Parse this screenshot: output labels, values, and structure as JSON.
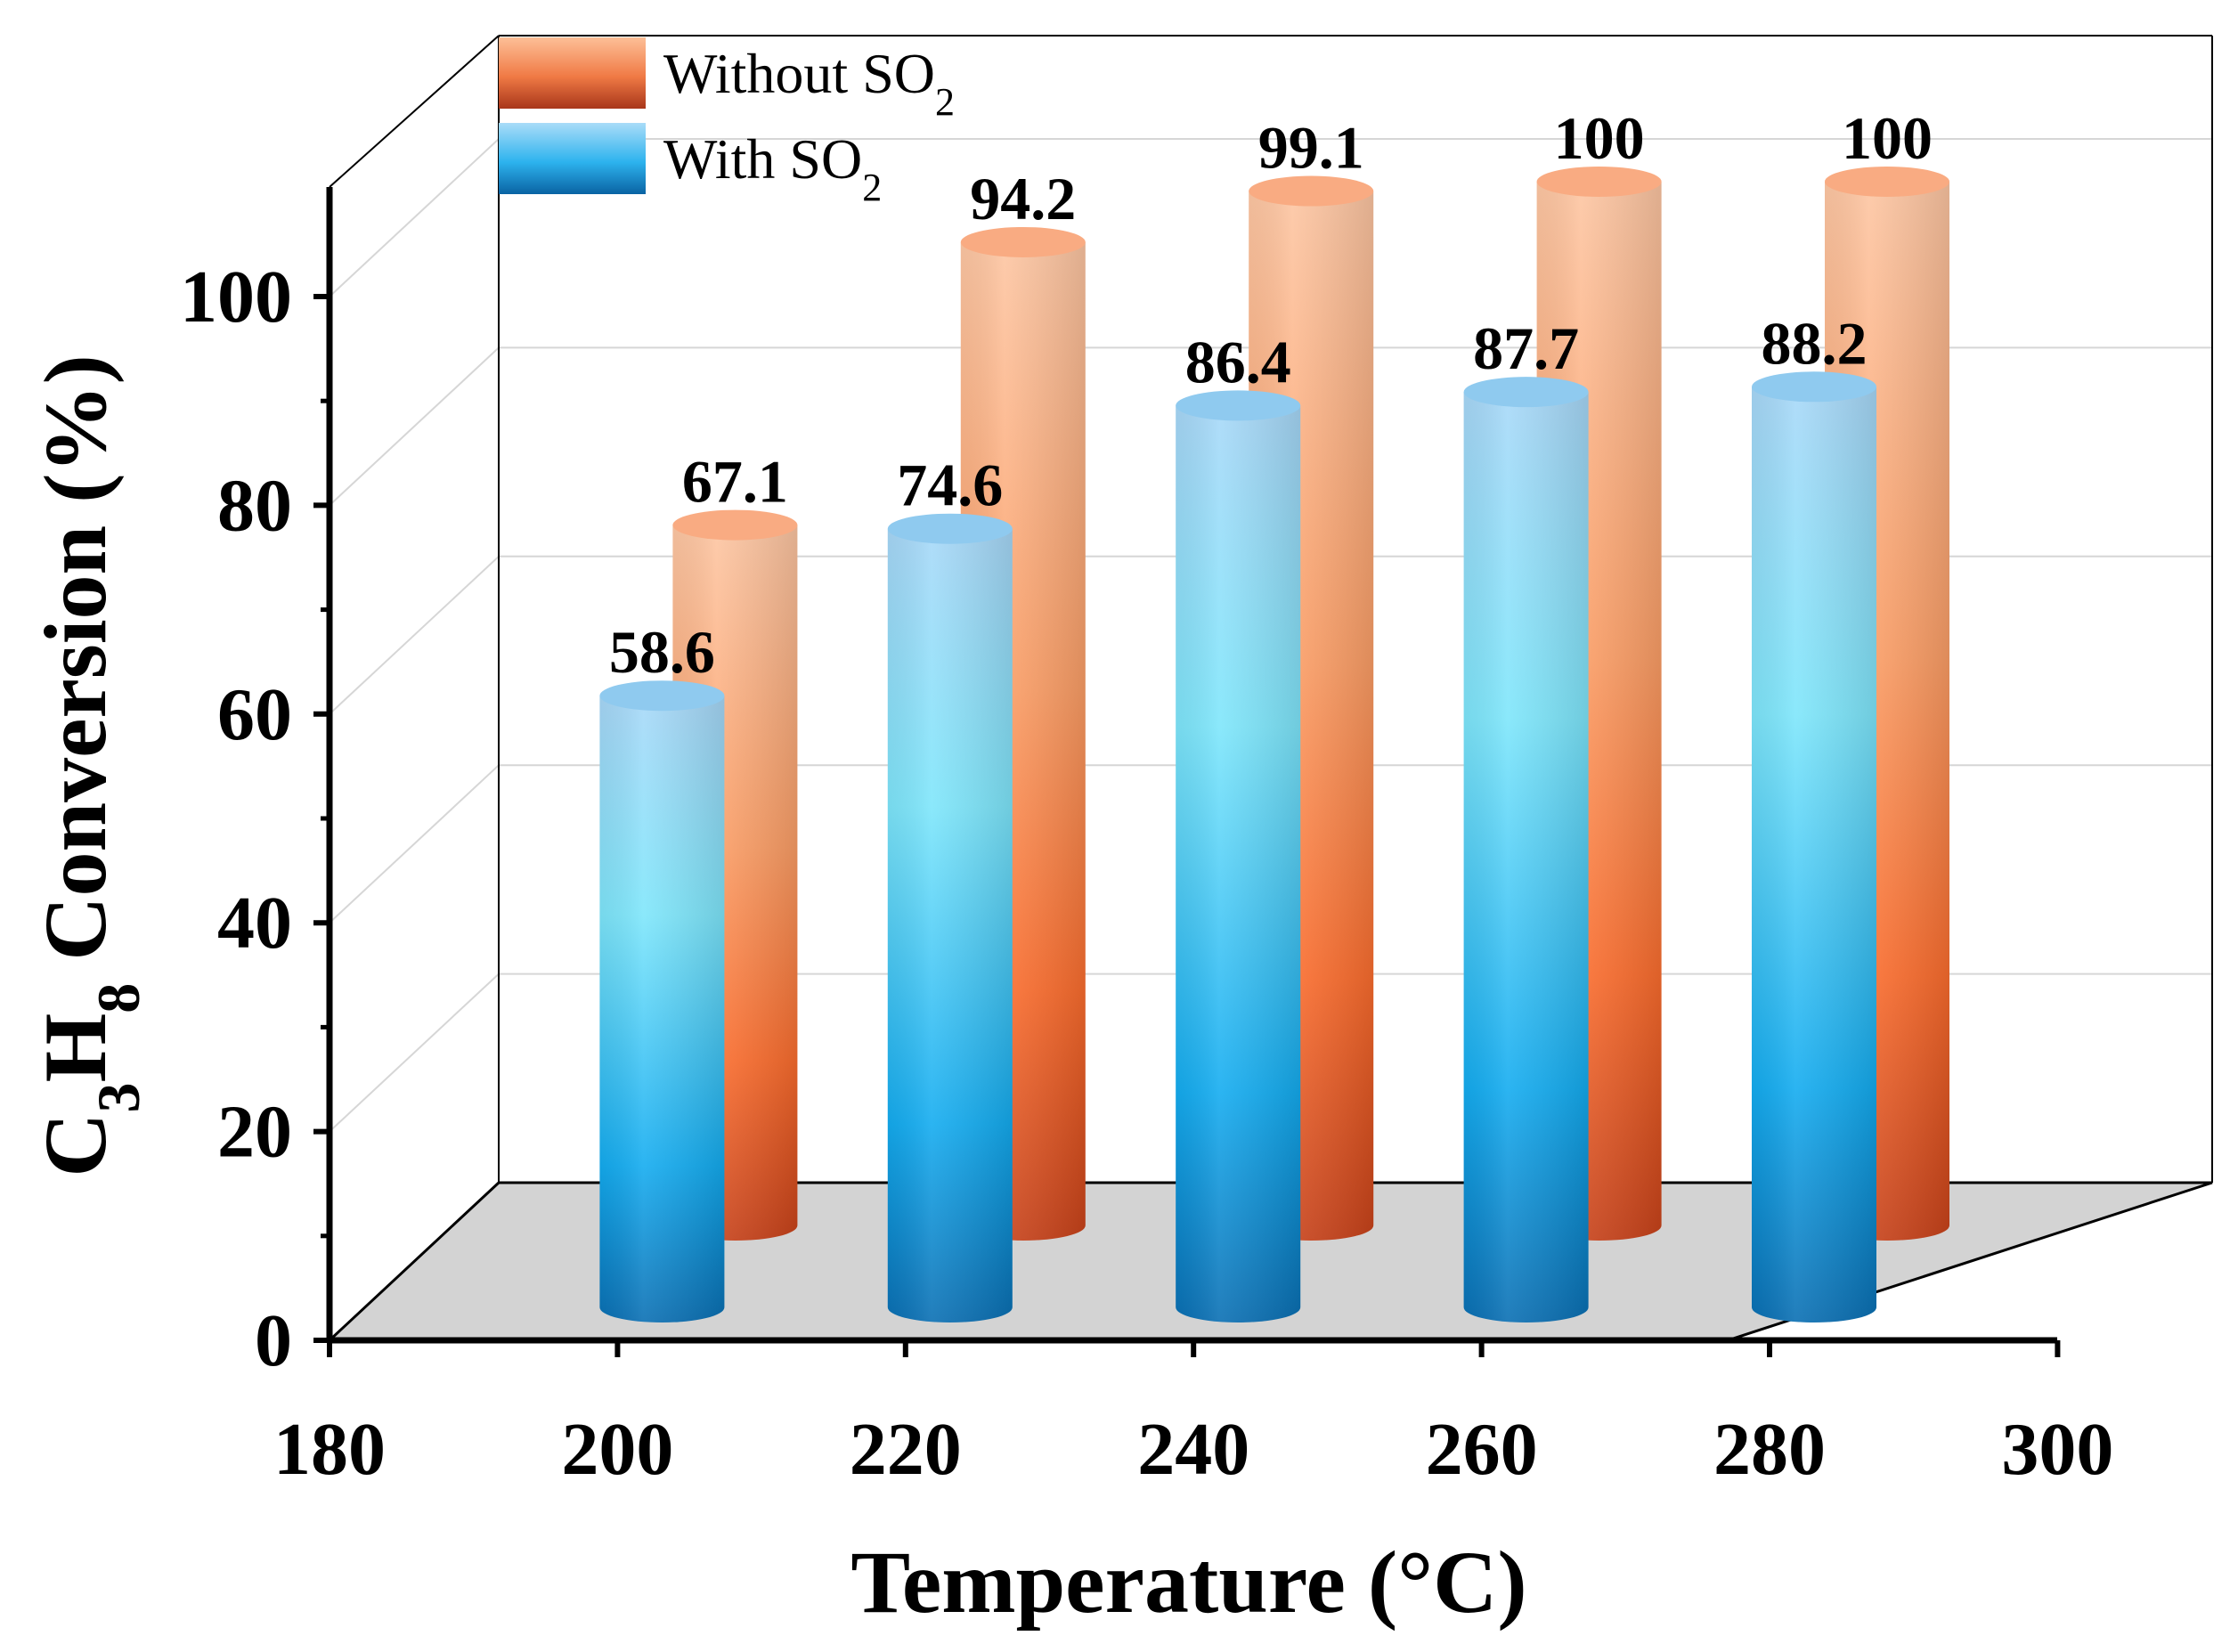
{
  "chart_data": {
    "type": "bar",
    "style": "3d-cylinder",
    "xlabel": "Temperature (°C)",
    "ylabel_parts": {
      "lead": "C",
      "sub1": "3",
      "mid": "H",
      "sub2": "8",
      "tail": " Conversion (%)"
    },
    "x_ticks": [
      "180",
      "200",
      "220",
      "240",
      "260",
      "280",
      "300"
    ],
    "y_ticks": [
      "0",
      "20",
      "40",
      "60",
      "80",
      "100"
    ],
    "xlim": [
      180,
      300
    ],
    "ylim": [
      0,
      110
    ],
    "categories": [
      200,
      220,
      240,
      260,
      280
    ],
    "series": [
      {
        "name": "Without SO2",
        "legend_main": "Without SO",
        "legend_sub": "2",
        "values": [
          67.1,
          94.2,
          99.1,
          100,
          100
        ],
        "labels": [
          "67.1",
          "94.2",
          "99.1",
          "100",
          "100"
        ],
        "color_light": "#fdbf97",
        "color_mid": "#fb7a3c",
        "color_dark": "#c9431a"
      },
      {
        "name": "With SO2",
        "legend_main": "With SO",
        "legend_sub": "2",
        "values": [
          58.6,
          74.6,
          86.4,
          87.7,
          88.2
        ],
        "labels": [
          "58.6",
          "74.6",
          "86.4",
          "87.7",
          "88.2"
        ],
        "color_light": "#a9dcf8",
        "color_mid": "#2bbcf6",
        "color_dark": "#0a72b4"
      }
    ],
    "legend_position": "top-left",
    "grid": true
  }
}
